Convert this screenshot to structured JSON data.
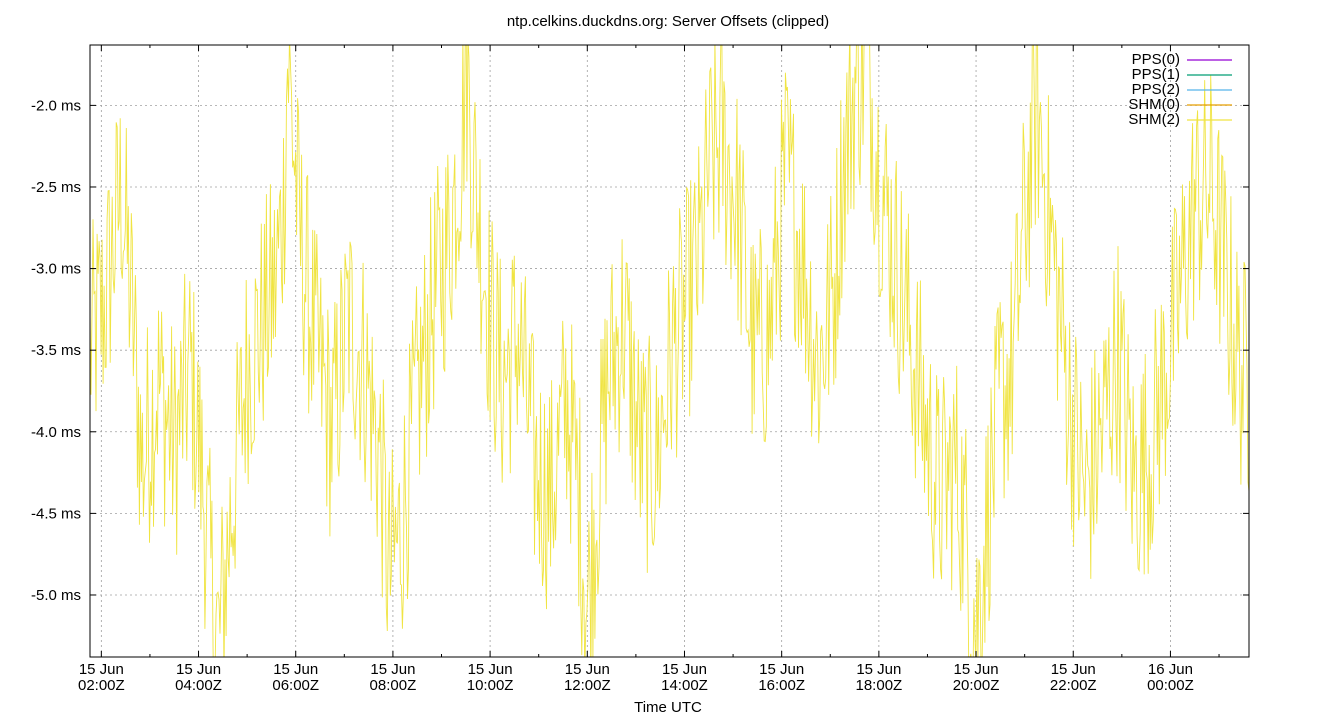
{
  "colors": {
    "background": "#ffffff",
    "grid": "#a0a0a0",
    "frame": "#000000",
    "pps0": "#9400d3",
    "pps1": "#009e73",
    "pps2": "#56b4e9",
    "shm0": "#e69f00",
    "shm2": "#f0e442"
  },
  "chart_data": {
    "type": "line",
    "title": "ntp.celkins.duckdns.org: Server Offsets (clipped)",
    "xlabel": "Time UTC",
    "ylabel": "",
    "grid": true,
    "legend_position": "top-right",
    "ylim": [
      -5.38,
      -1.63
    ],
    "xlim": [
      "2021-06-15T01:46Z",
      "2021-06-16T01:37Z"
    ],
    "y_ticks": [
      -2.0,
      -2.5,
      -3.0,
      -3.5,
      -4.0,
      -4.5,
      -5.0
    ],
    "y_tick_labels": [
      "-2.0 ms",
      "-2.5 ms",
      "-3.0 ms",
      "-3.5 ms",
      "-4.0 ms",
      "-4.5 ms",
      "-5.0 ms"
    ],
    "x_ticks": [
      {
        "date": "15 Jun",
        "time": "02:00Z"
      },
      {
        "date": "15 Jun",
        "time": "04:00Z"
      },
      {
        "date": "15 Jun",
        "time": "06:00Z"
      },
      {
        "date": "15 Jun",
        "time": "08:00Z"
      },
      {
        "date": "15 Jun",
        "time": "10:00Z"
      },
      {
        "date": "15 Jun",
        "time": "12:00Z"
      },
      {
        "date": "15 Jun",
        "time": "14:00Z"
      },
      {
        "date": "15 Jun",
        "time": "16:00Z"
      },
      {
        "date": "15 Jun",
        "time": "18:00Z"
      },
      {
        "date": "15 Jun",
        "time": "20:00Z"
      },
      {
        "date": "15 Jun",
        "time": "22:00Z"
      },
      {
        "date": "16 Jun",
        "time": "00:00Z"
      }
    ],
    "series": [
      {
        "name": "PPS(0)",
        "values": []
      },
      {
        "name": "PPS(1)",
        "values": []
      },
      {
        "name": "PPS(2)",
        "values": []
      },
      {
        "name": "SHM(0)",
        "values": []
      },
      {
        "name": "SHM(2)",
        "x": [
          "01:46Z",
          "02:05Z",
          "02:25Z",
          "02:40Z",
          "02:50Z",
          "03:10Z",
          "03:30Z",
          "03:50Z",
          "04:05Z",
          "04:15Z",
          "04:25Z",
          "04:40Z",
          "05:00Z",
          "05:15Z",
          "05:35Z",
          "05:45Z",
          "05:50Z",
          "06:05Z",
          "06:25Z",
          "06:45Z",
          "07:05Z",
          "07:25Z",
          "07:45Z",
          "07:55Z",
          "08:10Z",
          "08:30Z",
          "08:50Z",
          "09:10Z",
          "09:25Z",
          "09:30Z",
          "09:40Z",
          "10:00Z",
          "10:15Z",
          "10:35Z",
          "10:55Z",
          "11:15Z",
          "11:35Z",
          "11:50Z",
          "12:00Z",
          "12:05Z",
          "12:25Z",
          "12:45Z",
          "13:05Z",
          "13:25Z",
          "13:45Z",
          "14:05Z",
          "14:20Z",
          "14:30Z",
          "14:45Z",
          "15:05Z",
          "15:25Z",
          "15:45Z",
          "16:05Z",
          "16:25Z",
          "16:45Z",
          "17:05Z",
          "17:15Z",
          "17:30Z",
          "17:45Z",
          "18:00Z",
          "18:15Z",
          "18:35Z",
          "18:55Z",
          "19:15Z",
          "19:35Z",
          "19:50Z",
          "20:00Z",
          "20:10Z",
          "20:30Z",
          "20:45Z",
          "21:00Z",
          "21:15Z",
          "21:35Z",
          "21:55Z",
          "22:15Z",
          "22:35Z",
          "22:55Z",
          "23:15Z",
          "23:35Z",
          "23:55Z",
          "00:10Z",
          "00:30Z",
          "00:50Z",
          "01:10Z",
          "01:25Z",
          "01:37Z"
        ],
        "values": [
          -3.5,
          -3.2,
          -2.5,
          -3.4,
          -4.2,
          -3.7,
          -4.1,
          -3.6,
          -4.3,
          -4.9,
          -5.3,
          -4.5,
          -3.6,
          -3.4,
          -3.1,
          -2.6,
          -1.7,
          -2.8,
          -3.5,
          -4.0,
          -3.3,
          -3.6,
          -4.2,
          -4.9,
          -4.6,
          -3.8,
          -3.2,
          -2.8,
          -2.2,
          -1.7,
          -2.4,
          -3.3,
          -3.7,
          -3.4,
          -4.2,
          -4.4,
          -3.8,
          -4.4,
          -5.1,
          -4.8,
          -3.7,
          -3.3,
          -4.1,
          -4.2,
          -3.5,
          -3.2,
          -2.9,
          -2.4,
          -2.2,
          -2.6,
          -3.5,
          -3.4,
          -2.4,
          -2.9,
          -3.6,
          -3.1,
          -2.4,
          -1.9,
          -1.7,
          -2.4,
          -2.8,
          -3.3,
          -3.9,
          -4.4,
          -4.2,
          -4.7,
          -5.2,
          -4.7,
          -3.8,
          -3.6,
          -2.7,
          -2.0,
          -2.9,
          -3.8,
          -4.4,
          -4.0,
          -3.5,
          -4.3,
          -4.1,
          -3.6,
          -3.2,
          -2.6,
          -2.5,
          -3.1,
          -3.6,
          -3.7
        ]
      }
    ]
  }
}
